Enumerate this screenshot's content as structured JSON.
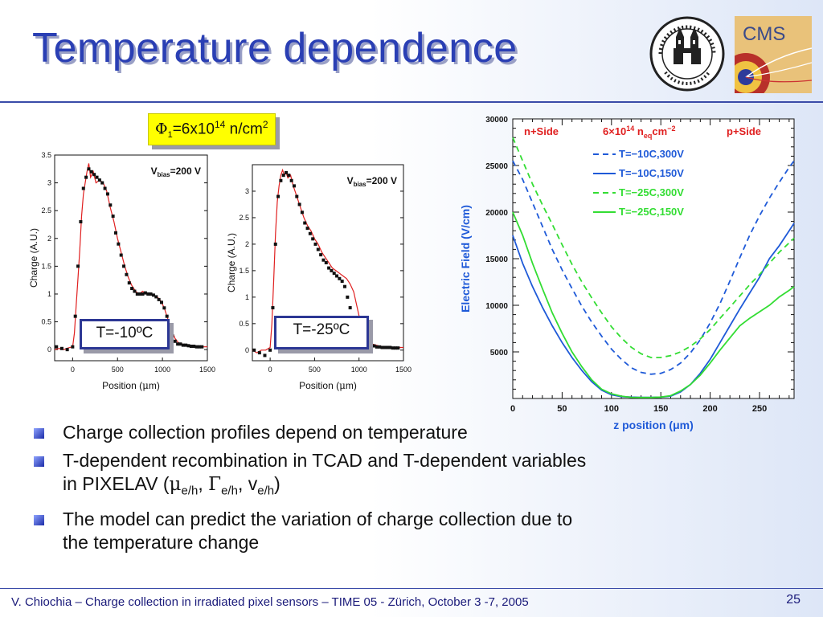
{
  "slide": {
    "title": "Temperature dependence",
    "phi_symbol": "Φ",
    "phi_sub": "1",
    "fluence_text": "=6x10",
    "fluence_exp": "14",
    "fluence_unit": " n/cm",
    "fluence_unit_exp": "2",
    "footer": "V. Chiochia – Charge collection in irradiated pixel sensors – TIME 05 - Zürich, October 3 -7, 2005",
    "page_number": "25",
    "colors": {
      "title": "#2a3fb4",
      "rule": "#3a4ba8",
      "callout_bg": "#ffff00",
      "tbox_border": "#2c3794",
      "blue": "#1f5ad8",
      "green": "#33dd33",
      "data": "#111111",
      "model": "#e02020"
    },
    "logos": {
      "left": "university-seal-icon",
      "right": "cms-logo-icon"
    }
  },
  "bullets": [
    {
      "segments": [
        {
          "t": "Charge collection profiles depend on temperature"
        }
      ]
    },
    {
      "segments": [
        {
          "t": "T-dependent recombination in TCAD and T-dependent variables in PIXELAV ("
        },
        {
          "t": "μ",
          "greek": true
        },
        {
          "t": "e/h",
          "sub": true
        },
        {
          "t": ", "
        },
        {
          "t": "Γ",
          "greek": true
        },
        {
          "t": "e/h",
          "sub": true
        },
        {
          "t": ", v"
        },
        {
          "t": "e/h",
          "sub": true
        },
        {
          "t": ")"
        }
      ]
    },
    {
      "segments": [
        {
          "t": "The model can predict the variation of charge collection due to the temperature change"
        }
      ]
    }
  ],
  "chart_data": [
    {
      "type": "scatter",
      "temperature_label": "T=-10ºC",
      "vbias_prefix": "V",
      "vbias_sub": "bias",
      "vbias_value": "=200 V",
      "xlabel_prefix": "Position (",
      "xlabel_mu": "μ",
      "xlabel_suffix": "m)",
      "ylabel": "Charge (A.U.)",
      "xlim": [
        -200,
        1500
      ],
      "ylim": [
        -0.2,
        3.5
      ],
      "xticks": [
        0,
        500,
        1000,
        1500
      ],
      "yticks": [
        0,
        0.5,
        1,
        1.5,
        2,
        2.5,
        3,
        3.5
      ],
      "series": [
        {
          "x": [
            -180,
            -120,
            -60,
            0,
            30,
            60,
            90,
            120,
            150,
            180,
            210,
            240,
            270,
            300,
            330,
            360,
            390,
            420,
            450,
            480,
            510,
            540,
            570,
            600,
            630,
            660,
            690,
            720,
            750,
            780,
            810,
            840,
            870,
            900,
            930,
            960,
            990,
            1020,
            1050,
            1080,
            1110,
            1140,
            1170,
            1200,
            1230,
            1260,
            1290,
            1320,
            1350,
            1380,
            1410,
            1440
          ],
          "y": [
            0.05,
            0.02,
            0.0,
            0.05,
            0.6,
            1.5,
            2.3,
            2.9,
            3.1,
            3.25,
            3.2,
            3.15,
            3.1,
            3.05,
            3.0,
            2.9,
            2.8,
            2.6,
            2.4,
            2.1,
            1.9,
            1.7,
            1.5,
            1.35,
            1.2,
            1.1,
            1.05,
            1.0,
            1.0,
            1.0,
            1.02,
            1.0,
            1.0,
            0.98,
            0.95,
            0.9,
            0.85,
            0.75,
            0.6,
            0.4,
            0.25,
            0.15,
            0.1,
            0.1,
            0.08,
            0.08,
            0.07,
            0.06,
            0.06,
            0.05,
            0.05,
            0.05
          ]
        },
        {
          "x": [
            -200,
            -150,
            -100,
            -50,
            0,
            20,
            40,
            60,
            80,
            100,
            120,
            140,
            160,
            180,
            200,
            230,
            260,
            300,
            340,
            380,
            420,
            460,
            500,
            540,
            580,
            620,
            660,
            700,
            740,
            780,
            820,
            860,
            900,
            940,
            980,
            1020,
            1060,
            1100,
            1140,
            1180,
            1220,
            1260,
            1300,
            1350,
            1400,
            1450,
            1500
          ],
          "y": [
            0.0,
            0.02,
            0.0,
            0.03,
            0.05,
            0.3,
            0.8,
            1.3,
            1.8,
            2.4,
            2.8,
            3.0,
            3.2,
            3.35,
            3.1,
            3.2,
            3.0,
            3.05,
            3.0,
            2.85,
            2.55,
            2.3,
            2.0,
            1.75,
            1.5,
            1.3,
            1.15,
            1.05,
            1.0,
            1.05,
            1.0,
            1.0,
            0.98,
            0.95,
            0.88,
            0.75,
            0.55,
            0.35,
            0.2,
            0.12,
            0.1,
            0.08,
            0.07,
            0.06,
            0.05,
            0.05,
            0.05
          ]
        }
      ]
    },
    {
      "type": "scatter",
      "temperature_label": "T=-25ºC",
      "vbias_prefix": "V",
      "vbias_sub": "bias",
      "vbias_value": "=200 V",
      "xlabel_prefix": "Position (",
      "xlabel_mu": "μ",
      "xlabel_suffix": "m)",
      "ylabel": "Charge (A.U.)",
      "xlim": [
        -200,
        1500
      ],
      "ylim": [
        -0.2,
        3.5
      ],
      "xticks": [
        0,
        500,
        1000,
        1500
      ],
      "yticks": [
        0,
        0.5,
        1,
        1.5,
        2,
        2.5,
        3
      ],
      "series": [
        {
          "x": [
            -180,
            -120,
            -60,
            0,
            30,
            60,
            90,
            120,
            150,
            180,
            210,
            240,
            270,
            300,
            330,
            360,
            390,
            420,
            450,
            480,
            510,
            540,
            570,
            600,
            630,
            660,
            690,
            720,
            750,
            780,
            810,
            840,
            870,
            900,
            930,
            960,
            990,
            1020,
            1050,
            1080,
            1110,
            1140,
            1170,
            1200,
            1230,
            1260,
            1290,
            1320,
            1350,
            1380,
            1410,
            1440
          ],
          "y": [
            0.0,
            -0.05,
            -0.1,
            0.0,
            0.8,
            2.0,
            2.9,
            3.2,
            3.3,
            3.35,
            3.3,
            3.2,
            3.1,
            2.9,
            2.75,
            2.6,
            2.4,
            2.3,
            2.2,
            2.1,
            2.0,
            1.9,
            1.8,
            1.7,
            1.65,
            1.55,
            1.5,
            1.45,
            1.4,
            1.35,
            1.3,
            1.2,
            1.0,
            0.8,
            0.5,
            0.3,
            0.2,
            0.15,
            0.12,
            0.1,
            0.1,
            0.08,
            0.08,
            0.06,
            0.06,
            0.05,
            0.05,
            0.05,
            0.05,
            0.04,
            0.04,
            0.04
          ]
        },
        {
          "x": [
            -200,
            -150,
            -100,
            -50,
            0,
            20,
            40,
            60,
            80,
            100,
            120,
            140,
            160,
            180,
            200,
            230,
            260,
            300,
            340,
            380,
            420,
            460,
            500,
            540,
            580,
            620,
            660,
            700,
            740,
            780,
            820,
            860,
            900,
            940,
            980,
            1020,
            1060,
            1100,
            1140,
            1180,
            1220,
            1260,
            1300,
            1350,
            1400,
            1450,
            1500
          ],
          "y": [
            0.0,
            -0.05,
            0.0,
            0.0,
            0.05,
            0.5,
            1.3,
            2.2,
            2.8,
            3.1,
            3.3,
            3.4,
            3.3,
            3.35,
            3.25,
            3.3,
            3.1,
            2.9,
            2.7,
            2.5,
            2.35,
            2.25,
            2.1,
            2.0,
            1.85,
            1.75,
            1.65,
            1.55,
            1.5,
            1.45,
            1.4,
            1.35,
            1.25,
            1.1,
            0.8,
            0.5,
            0.3,
            0.18,
            0.12,
            0.1,
            0.08,
            0.07,
            0.06,
            0.05,
            0.05,
            0.05,
            0.05
          ]
        }
      ]
    },
    {
      "type": "line",
      "title_left": "n+Side",
      "title_mid": "6×10",
      "title_mid_exp": "14",
      "title_mid_unit": " n",
      "title_mid_sub": "eq",
      "title_mid_cm": "cm",
      "title_mid_cm_exp": "−2",
      "title_right": "p+Side",
      "xlabel": "z position (μm)",
      "ylabel": "Electric Field (V/cm)",
      "xlim": [
        0,
        285
      ],
      "ylim": [
        0,
        30000
      ],
      "xticks": [
        0,
        50,
        100,
        150,
        200,
        250
      ],
      "yticks": [
        5000,
        10000,
        15000,
        20000,
        25000,
        30000
      ],
      "series": [
        {
          "name": "T=−10C,300V",
          "color": "#1f5ad8",
          "dash": true,
          "x": [
            0,
            10,
            20,
            30,
            40,
            50,
            60,
            70,
            80,
            90,
            100,
            110,
            120,
            130,
            140,
            150,
            160,
            170,
            180,
            190,
            200,
            210,
            220,
            230,
            240,
            250,
            260,
            270,
            280,
            285
          ],
          "y": [
            25500,
            23500,
            21000,
            18500,
            16000,
            13800,
            11800,
            9900,
            8200,
            6700,
            5300,
            4200,
            3300,
            2800,
            2600,
            2700,
            3100,
            3800,
            4900,
            6300,
            8100,
            10200,
            12600,
            15100,
            17500,
            19600,
            21500,
            23200,
            24800,
            25500
          ]
        },
        {
          "name": "T=−10C,150V",
          "color": "#1f5ad8",
          "dash": false,
          "x": [
            0,
            10,
            20,
            30,
            40,
            50,
            60,
            70,
            80,
            90,
            100,
            110,
            120,
            130,
            140,
            150,
            160,
            170,
            180,
            190,
            200,
            210,
            220,
            230,
            240,
            250,
            260,
            270,
            280,
            285
          ],
          "y": [
            17500,
            14500,
            12000,
            9800,
            7800,
            6000,
            4400,
            3000,
            1800,
            900,
            400,
            200,
            150,
            120,
            120,
            150,
            250,
            700,
            1500,
            2700,
            4200,
            6000,
            7800,
            9600,
            11300,
            13000,
            15000,
            16400,
            18000,
            18800
          ]
        },
        {
          "name": "T=−25C,300V",
          "color": "#33dd33",
          "dash": true,
          "x": [
            0,
            10,
            20,
            30,
            40,
            50,
            60,
            70,
            80,
            90,
            100,
            110,
            120,
            130,
            140,
            150,
            160,
            170,
            180,
            190,
            200,
            210,
            220,
            230,
            240,
            250,
            260,
            270,
            280,
            285
          ],
          "y": [
            28000,
            25500,
            23000,
            20800,
            18700,
            16500,
            14400,
            12500,
            10800,
            9200,
            7700,
            6500,
            5500,
            4800,
            4400,
            4400,
            4600,
            5000,
            5600,
            6400,
            7400,
            8600,
            9800,
            11000,
            12200,
            13300,
            14500,
            15700,
            16700,
            17200
          ]
        },
        {
          "name": "T=−25C,150V",
          "color": "#33dd33",
          "dash": false,
          "x": [
            0,
            10,
            20,
            30,
            40,
            50,
            60,
            70,
            80,
            90,
            100,
            110,
            120,
            130,
            140,
            150,
            160,
            170,
            180,
            190,
            200,
            210,
            220,
            230,
            240,
            250,
            260,
            270,
            280,
            285
          ],
          "y": [
            20000,
            17500,
            14500,
            11800,
            9200,
            7000,
            5000,
            3400,
            2000,
            1000,
            500,
            250,
            120,
            100,
            100,
            150,
            300,
            800,
            1500,
            2500,
            3800,
            5200,
            6500,
            7800,
            8600,
            9300,
            10000,
            10900,
            11600,
            12000
          ]
        }
      ]
    }
  ]
}
